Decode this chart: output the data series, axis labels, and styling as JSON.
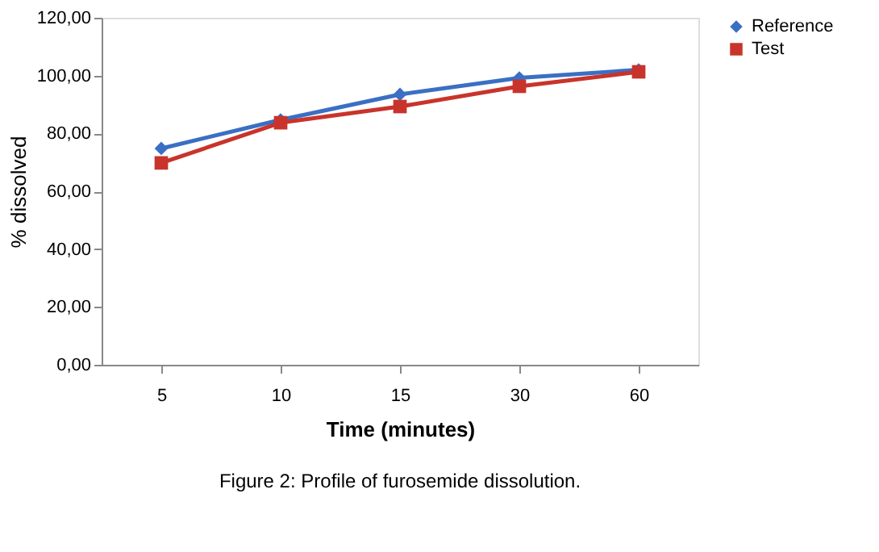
{
  "chart_data": {
    "type": "line",
    "xlabel": "Time (minutes)",
    "ylabel": "% dissolved",
    "categories": [
      "5",
      "10",
      "15",
      "30",
      "60"
    ],
    "series": [
      {
        "name": "Reference",
        "color": "#3a6fc4",
        "marker": "diamond",
        "values": [
          74.8,
          84.7,
          93.5,
          99.2,
          102.0
        ]
      },
      {
        "name": "Test",
        "color": "#c8342b",
        "marker": "square",
        "values": [
          69.8,
          83.7,
          89.3,
          96.3,
          101.3
        ]
      }
    ],
    "ylim": [
      0,
      120
    ],
    "yticks": [
      {
        "value": 0,
        "label": "0,00"
      },
      {
        "value": 20,
        "label": "20,00"
      },
      {
        "value": 40,
        "label": "40,00"
      },
      {
        "value": 60,
        "label": "60,00"
      },
      {
        "value": 80,
        "label": "80,00"
      },
      {
        "value": 100,
        "label": "100,00"
      },
      {
        "value": 120,
        "label": "120,00"
      }
    ],
    "grid": false,
    "legend": "right",
    "annotations": [
      "Figure 2: Profile of furosemide dissolution."
    ]
  }
}
